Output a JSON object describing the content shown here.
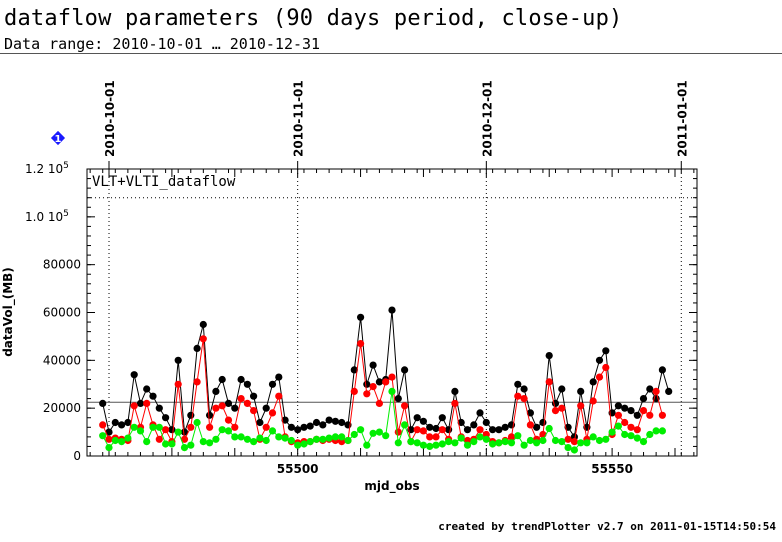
{
  "header": {
    "title": "dataflow parameters (90 days period, close-up)",
    "subtitle": "Data range: 2010-10-01 … 2010-12-31"
  },
  "footer": {
    "text": "created by trendPlotter v2.7 on 2011-01-15T14:50:54"
  },
  "chart_data": {
    "type": "scatter",
    "panel_label": "VLT+VLTI_dataflow",
    "xlabel": "mjd_obs",
    "ylabel": "dataVol_(MB)",
    "xlim": [
      55466.5,
      55563.5
    ],
    "ylim": [
      0,
      120000
    ],
    "x_ticks": [
      55500,
      55550
    ],
    "y_ticks": [
      {
        "value": 0,
        "label": "0"
      },
      {
        "value": 20000,
        "label": "20000"
      },
      {
        "value": 40000,
        "label": "40000"
      },
      {
        "value": 60000,
        "label": "60000"
      },
      {
        "value": 80000,
        "label": "80000"
      },
      {
        "value": 100000,
        "label": "1.0 10^5"
      },
      {
        "value": 120000,
        "label": "1.2 10^5"
      }
    ],
    "date_markers": [
      {
        "x": 55470,
        "label": "2010-10-01"
      },
      {
        "x": 55500,
        "label": "2010-11-01"
      },
      {
        "x": 55530,
        "label": "2010-12-01"
      },
      {
        "x": 55561,
        "label": "2011-01-01"
      }
    ],
    "reference_lines": [
      {
        "y": 108000,
        "style": "dotted"
      },
      {
        "y": 22500,
        "style": "solid"
      }
    ],
    "marker_badge": "1",
    "colors": {
      "total": "#000000",
      "red": "#ff0000",
      "green": "#00ee00",
      "badge": "#1a1aff"
    },
    "series": [
      {
        "color": "#000000",
        "x": [
          55469,
          55470,
          55471,
          55472,
          55473,
          55474,
          55475,
          55476,
          55477,
          55478,
          55479,
          55480,
          55481,
          55482,
          55483,
          55484,
          55485,
          55486,
          55487,
          55488,
          55489,
          55490,
          55491,
          55492,
          55493,
          55494,
          55495,
          55496,
          55497,
          55498,
          55499,
          55500,
          55501,
          55502,
          55503,
          55504,
          55505,
          55506,
          55507,
          55508,
          55509,
          55510,
          55511,
          55512,
          55513,
          55514,
          55515,
          55516,
          55517,
          55518,
          55519,
          55520,
          55521,
          55522,
          55523,
          55524,
          55525,
          55526,
          55527,
          55528,
          55529,
          55530,
          55531,
          55532,
          55533,
          55534,
          55535,
          55536,
          55537,
          55538,
          55539,
          55540,
          55541,
          55542,
          55543,
          55544,
          55545,
          55546,
          55547,
          55548,
          55549,
          55550,
          55551,
          55552,
          55553,
          55554,
          55555,
          55556,
          55557,
          55558,
          55559,
          55560,
          55561
        ],
        "y": [
          22000,
          10000,
          14000,
          13000,
          14000,
          34000,
          22000,
          28000,
          25000,
          20000,
          16000,
          11000,
          40000,
          10000,
          17000,
          45000,
          55000,
          17000,
          27000,
          32000,
          22000,
          20000,
          32000,
          30000,
          25000,
          14000,
          20000,
          30000,
          33000,
          15000,
          12000,
          11000,
          12000,
          12500,
          14000,
          13000,
          15000,
          14500,
          14000,
          13000,
          36000,
          58000,
          30000,
          38000,
          31000,
          32000,
          61000,
          24000,
          36000,
          11000,
          16000,
          14500,
          12000,
          11500,
          16000,
          11000,
          27000,
          14000,
          11000,
          13000,
          18000,
          14000,
          11000,
          11000,
          12000,
          13000,
          30000,
          28000,
          18000,
          12000,
          14000,
          42000,
          22000,
          28000,
          12000,
          8000,
          27000,
          12000,
          31000,
          40000,
          44000,
          18000,
          21000,
          20000,
          19000,
          17000,
          24000,
          28000,
          24000,
          36000,
          27000,
          0,
          0
        ]
      },
      {
        "color": "#ff0000",
        "x": [
          55469,
          55470,
          55471,
          55472,
          55473,
          55474,
          55475,
          55476,
          55477,
          55478,
          55479,
          55480,
          55481,
          55482,
          55483,
          55484,
          55485,
          55486,
          55487,
          55488,
          55489,
          55490,
          55491,
          55492,
          55493,
          55494,
          55495,
          55496,
          55497,
          55498,
          55499,
          55500,
          55501,
          55502,
          55503,
          55504,
          55505,
          55506,
          55507,
          55508,
          55509,
          55510,
          55511,
          55512,
          55513,
          55514,
          55515,
          55516,
          55517,
          55518,
          55519,
          55520,
          55521,
          55522,
          55523,
          55524,
          55525,
          55526,
          55527,
          55528,
          55529,
          55530,
          55531,
          55532,
          55533,
          55534,
          55535,
          55536,
          55537,
          55538,
          55539,
          55540,
          55541,
          55542,
          55543,
          55544,
          55545,
          55546,
          55547,
          55548,
          55549,
          55550,
          55551,
          55552,
          55553,
          55554,
          55555,
          55556,
          55557,
          55558,
          55559,
          55560,
          55561
        ],
        "y": [
          13000,
          7000,
          7500,
          7000,
          6500,
          21000,
          12000,
          22000,
          13000,
          7000,
          11000,
          6000,
          30000,
          7000,
          12000,
          31000,
          49000,
          12000,
          20000,
          21000,
          15000,
          12000,
          24000,
          22000,
          19000,
          7000,
          12000,
          18000,
          25000,
          8000,
          6000,
          5500,
          6000,
          6000,
          7000,
          6500,
          7000,
          6500,
          6000,
          6500,
          27000,
          47000,
          26000,
          29000,
          22000,
          31000,
          33000,
          10000,
          21000,
          6000,
          11000,
          10500,
          8000,
          8000,
          11000,
          7000,
          22000,
          8000,
          6500,
          7000,
          11000,
          9000,
          6000,
          5500,
          6500,
          8000,
          25000,
          24000,
          13000,
          7000,
          9000,
          31000,
          19000,
          20000,
          7000,
          6000,
          21000,
          7000,
          23000,
          33000,
          37000,
          9000,
          17000,
          14000,
          12000,
          11000,
          19000,
          17000,
          27000,
          17000,
          0,
          0,
          0
        ]
      },
      {
        "color": "#00ee00",
        "x": [
          55469,
          55470,
          55471,
          55472,
          55473,
          55474,
          55475,
          55476,
          55477,
          55478,
          55479,
          55480,
          55481,
          55482,
          55483,
          55484,
          55485,
          55486,
          55487,
          55488,
          55489,
          55490,
          55491,
          55492,
          55493,
          55494,
          55495,
          55496,
          55497,
          55498,
          55499,
          55500,
          55501,
          55502,
          55503,
          55504,
          55505,
          55506,
          55507,
          55508,
          55509,
          55510,
          55511,
          55512,
          55513,
          55514,
          55515,
          55516,
          55517,
          55518,
          55519,
          55520,
          55521,
          55522,
          55523,
          55524,
          55525,
          55526,
          55527,
          55528,
          55529,
          55530,
          55531,
          55532,
          55533,
          55534,
          55535,
          55536,
          55537,
          55538,
          55539,
          55540,
          55541,
          55542,
          55543,
          55544,
          55545,
          55546,
          55547,
          55548,
          55549,
          55550,
          55551,
          55552,
          55553,
          55554,
          55555,
          55556,
          55557,
          55558,
          55559,
          55560,
          55561
        ],
        "y": [
          8500,
          3500,
          6500,
          6000,
          7500,
          12000,
          10500,
          6000,
          12000,
          12000,
          5000,
          5000,
          10000,
          3500,
          4500,
          14000,
          6000,
          5500,
          7000,
          11000,
          10500,
          8000,
          8000,
          7000,
          6000,
          7500,
          6500,
          10500,
          8000,
          7500,
          6500,
          4500,
          5000,
          6000,
          7000,
          7000,
          7500,
          8000,
          8000,
          6500,
          9000,
          11000,
          4500,
          9500,
          10000,
          8500,
          27000,
          5500,
          13000,
          6000,
          5500,
          4500,
          4000,
          4500,
          5000,
          6000,
          5500,
          7500,
          4500,
          6000,
          8000,
          7000,
          5000,
          5500,
          6000,
          5500,
          8500,
          4500,
          6500,
          5500,
          6500,
          11500,
          6500,
          6000,
          3500,
          2500,
          5500,
          5500,
          8000,
          6500,
          7000,
          10000,
          12500,
          9000,
          8500,
          7500,
          6000,
          9000,
          10500,
          10500,
          0,
          0,
          0
        ]
      }
    ]
  }
}
